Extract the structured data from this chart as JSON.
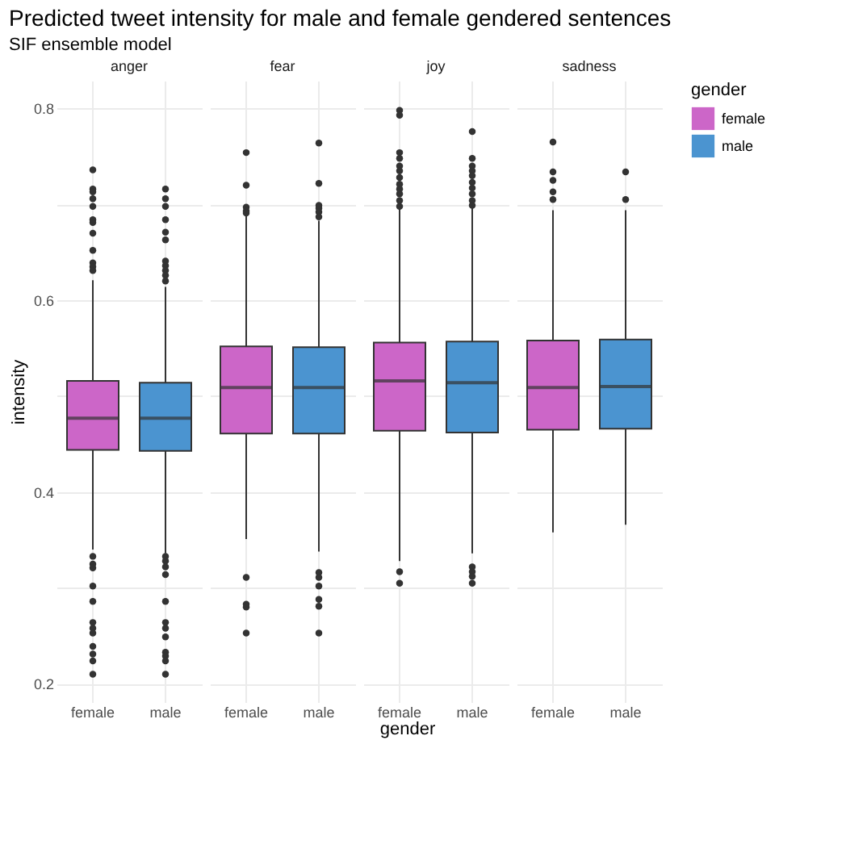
{
  "chart_data": [
    {
      "type": "other",
      "title": "Predicted tweet intensity for male and female gendered sentences",
      "subtitle": "SIF ensemble model",
      "xlabel": "gender"
    },
    {
      "type": "box",
      "title": "anger",
      "ylabel": "intensity",
      "categories": [
        "female",
        "male"
      ],
      "ylim": [
        0.181,
        0.829
      ],
      "yticks": [
        0.2,
        {
          "value": 0.3,
          "label": null
        },
        0.4,
        {
          "value": 0.5,
          "label": null
        },
        0.6,
        {
          "value": 0.7,
          "label": null
        },
        0.8
      ],
      "grid": true,
      "legend": false,
      "series": [
        {
          "color": "#cc66c8",
          "boxes": [
            {
              "low": 0.34,
              "q1": 0.444,
              "median": 0.477,
              "q3": 0.516,
              "high": 0.621,
              "outliers": [
                0.736,
                0.716,
                0.713,
                0.706,
                0.698,
                0.684,
                0.681,
                0.67,
                0.652,
                0.639,
                0.635,
                0.631,
                0.333,
                0.325,
                0.321,
                0.302,
                0.286,
                0.264,
                0.258,
                0.253,
                0.239,
                0.231,
                0.224,
                0.21
              ]
            },
            null
          ]
        },
        {
          "color": "#4b94d0",
          "boxes": [
            null,
            {
              "low": 0.336,
              "q1": 0.443,
              "median": 0.477,
              "q3": 0.514,
              "high": 0.614,
              "outliers": [
                0.716,
                0.706,
                0.698,
                0.684,
                0.671,
                0.663,
                0.641,
                0.636,
                0.631,
                0.626,
                0.62,
                0.333,
                0.328,
                0.322,
                0.314,
                0.286,
                0.264,
                0.258,
                0.249,
                0.233,
                0.229,
                0.224,
                0.21
              ]
            }
          ]
        }
      ]
    },
    {
      "type": "box",
      "title": "fear",
      "categories": [
        "female",
        "male"
      ],
      "ylim": [
        0.181,
        0.829
      ],
      "yticks": [
        0.2,
        {
          "value": 0.3,
          "label": null
        },
        0.4,
        {
          "value": 0.5,
          "label": null
        },
        0.6,
        {
          "value": 0.7,
          "label": null
        },
        0.8
      ],
      "grid": true,
      "legend": false,
      "tick_labels": "x",
      "series": [
        {
          "color": "#cc66c8",
          "boxes": [
            {
              "low": 0.351,
              "q1": 0.461,
              "median": 0.509,
              "q3": 0.552,
              "high": 0.688,
              "outliers": [
                0.754,
                0.72,
                0.697,
                0.693,
                0.691,
                0.311,
                0.283,
                0.28,
                0.253
              ]
            },
            null
          ]
        },
        {
          "color": "#4b94d0",
          "boxes": [
            null,
            {
              "low": 0.338,
              "q1": 0.461,
              "median": 0.509,
              "q3": 0.551,
              "high": 0.683,
              "outliers": [
                0.764,
                0.722,
                0.699,
                0.696,
                0.692,
                0.687,
                0.316,
                0.311,
                0.302,
                0.288,
                0.281,
                0.253
              ]
            }
          ]
        }
      ]
    },
    {
      "type": "box",
      "title": "joy",
      "categories": [
        "female",
        "male"
      ],
      "ylim": [
        0.181,
        0.829
      ],
      "yticks": [
        0.2,
        {
          "value": 0.3,
          "label": null
        },
        0.4,
        {
          "value": 0.5,
          "label": null
        },
        0.6,
        {
          "value": 0.7,
          "label": null
        },
        0.8
      ],
      "grid": true,
      "legend": false,
      "tick_labels": "x",
      "series": [
        {
          "color": "#cc66c8",
          "boxes": [
            {
              "low": 0.328,
              "q1": 0.464,
              "median": 0.516,
              "q3": 0.556,
              "high": 0.696,
              "outliers": [
                0.798,
                0.793,
                0.754,
                0.748,
                0.74,
                0.735,
                0.728,
                0.721,
                0.716,
                0.711,
                0.704,
                0.698,
                0.317,
                0.305
              ]
            },
            null
          ]
        },
        {
          "color": "#4b94d0",
          "boxes": [
            null,
            {
              "low": 0.336,
              "q1": 0.462,
              "median": 0.514,
              "q3": 0.557,
              "high": 0.697,
              "outliers": [
                0.776,
                0.748,
                0.74,
                0.735,
                0.73,
                0.723,
                0.717,
                0.711,
                0.704,
                0.699,
                0.322,
                0.317,
                0.312,
                0.305
              ]
            }
          ]
        }
      ]
    },
    {
      "type": "box",
      "title": "sadness",
      "categories": [
        "female",
        "male"
      ],
      "ylim": [
        0.181,
        0.829
      ],
      "yticks": [
        0.2,
        {
          "value": 0.3,
          "label": null
        },
        0.4,
        {
          "value": 0.5,
          "label": null
        },
        0.6,
        {
          "value": 0.7,
          "label": null
        },
        0.8
      ],
      "grid": true,
      "legend": "right",
      "legend_title": "gender",
      "tick_labels": "x",
      "series": [
        {
          "name": "female",
          "color": "#cc66c8",
          "boxes": [
            {
              "low": 0.358,
              "q1": 0.465,
              "median": 0.509,
              "q3": 0.558,
              "high": 0.694,
              "outliers": [
                0.765,
                0.734,
                0.725,
                0.713,
                0.705
              ]
            },
            null
          ]
        },
        {
          "name": "male",
          "color": "#4b94d0",
          "boxes": [
            null,
            {
              "low": 0.366,
              "q1": 0.466,
              "median": 0.51,
              "q3": 0.559,
              "high": 0.694,
              "outliers": [
                0.734,
                0.705
              ]
            }
          ]
        }
      ]
    }
  ]
}
